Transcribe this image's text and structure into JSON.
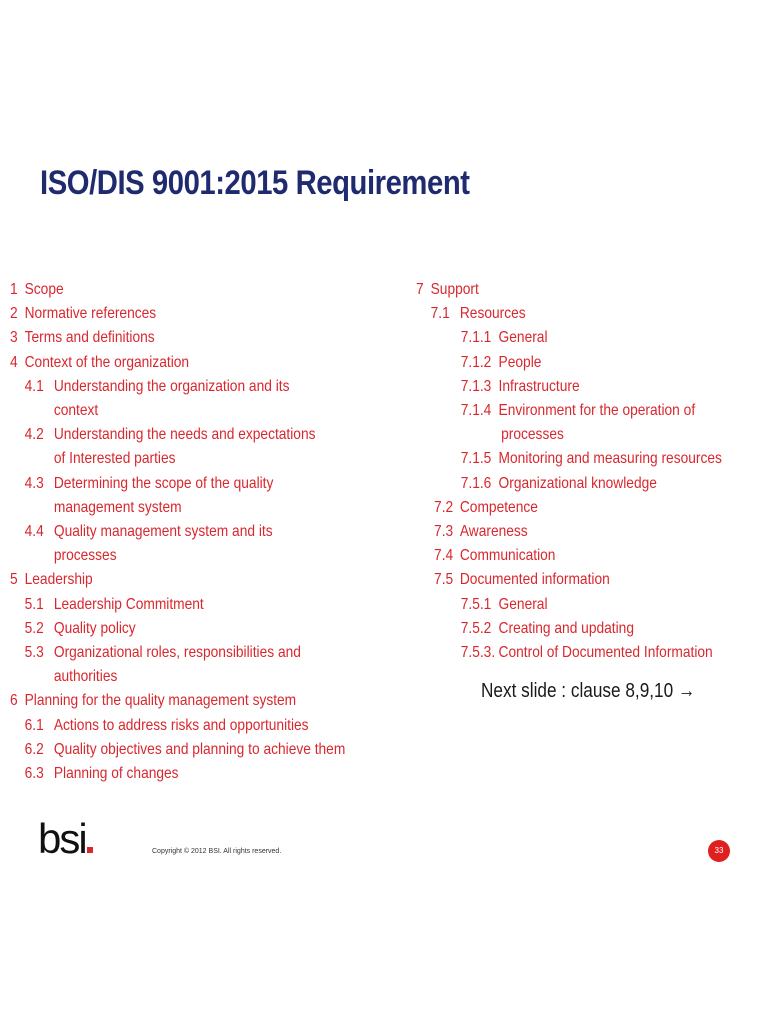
{
  "slide": {
    "title": "ISO/DIS 9001:2015 Requirement",
    "next_slide": "Next slide : clause 8,9,10 →",
    "logo_text": "bsi",
    "copyright": "Copyright © 2012 BSI. All rights reserved.",
    "page_number": "33"
  },
  "clauses_left": [
    {
      "num": "1",
      "text": "Scope"
    },
    {
      "num": "2",
      "text": "Normative references"
    },
    {
      "num": "3",
      "text": "Terms and definitions"
    },
    {
      "num": "4",
      "text": "Context of the  organization"
    },
    {
      "num": "4.1",
      "text": "Understanding the organization and its",
      "cont": "context"
    },
    {
      "num": "4.2",
      "text": "Understanding the needs and expectations",
      "cont": "of Interested parties"
    },
    {
      "num": "4.3",
      "text": "Determining the scope of the quality",
      "cont": "management system"
    },
    {
      "num": "4.4",
      "text": "Quality management system and its",
      "cont": "processes"
    },
    {
      "num": "5",
      "text": "Leadership"
    },
    {
      "num": "5.1",
      "text": "Leadership Commitment"
    },
    {
      "num": "5.2",
      "text": "Quality policy"
    },
    {
      "num": "5.3",
      "text": "Organizational roles, responsibilities and",
      "cont": "authorities"
    },
    {
      "num": "6",
      "text": "Planning for the quality management system"
    },
    {
      "num": "6.1",
      "text": "Actions to address risks and opportunities"
    },
    {
      "num": "6.2",
      "text": "Quality objectives and planning to achieve them"
    },
    {
      "num": "6.3",
      "text": "Planning of changes"
    }
  ],
  "clauses_right": [
    {
      "num": "7",
      "text": "Support"
    },
    {
      "num": "7.1",
      "text": "Resources"
    },
    {
      "num": "7.1.1",
      "text": "General"
    },
    {
      "num": "7.1.2",
      "text": "People"
    },
    {
      "num": "7.1.3",
      "text": "Infrastructure"
    },
    {
      "num": "7.1.4",
      "text": "Environment for the operation of",
      "cont": "processes"
    },
    {
      "num": "7.1.5",
      "text": "Monitoring and measuring resources"
    },
    {
      "num": "7.1.6",
      "text": "Organizational knowledge"
    },
    {
      "num": "7.2",
      "text": "Competence"
    },
    {
      "num": "7.3",
      "text": "Awareness"
    },
    {
      "num": "7.4",
      "text": "Communication"
    },
    {
      "num": "7.5",
      "text": "Documented information"
    },
    {
      "num": "7.5.1",
      "text": "General"
    },
    {
      "num": "7.5.2",
      "text": "Creating and updating"
    },
    {
      "num": "7.5.3.",
      "text": "Control of Documented Information"
    }
  ],
  "colors": {
    "title": "#1f2b6e",
    "clause_text": "#d9272e",
    "badge": "#e0201f"
  }
}
